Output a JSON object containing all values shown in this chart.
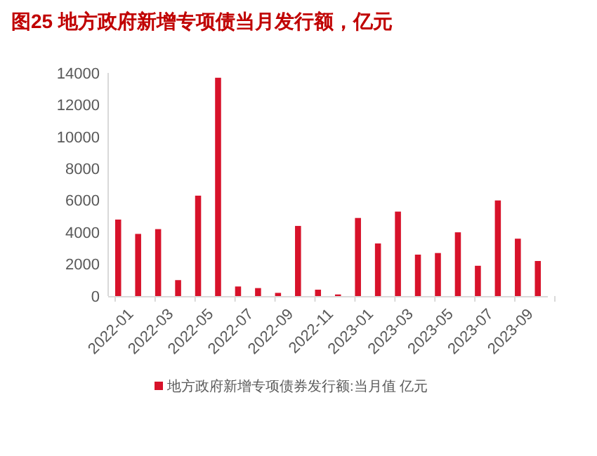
{
  "chart_data": {
    "type": "bar",
    "title": "图25  地方政府新增专项债当月发行额，亿元",
    "categories": [
      "2022-01",
      null,
      "2022-03",
      null,
      "2022-05",
      null,
      "2022-07",
      null,
      "2022-09",
      null,
      "2022-11",
      null,
      "2023-01",
      null,
      "2023-03",
      null,
      "2023-05",
      null,
      "2023-07",
      null,
      "2023-09",
      null
    ],
    "series": [
      {
        "name": "地方政府新增专项债券发行额:当月值 亿元",
        "color": "#d7122a",
        "values": [
          4800,
          3900,
          4200,
          1000,
          6300,
          13700,
          600,
          500,
          200,
          4400,
          400,
          100,
          4900,
          3300,
          5300,
          2600,
          2700,
          4000,
          1900,
          6000,
          3600,
          2200
        ]
      }
    ],
    "ylim": [
      0,
      14000
    ],
    "yticks": [
      0,
      2000,
      4000,
      6000,
      8000,
      10000,
      12000,
      14000
    ],
    "grid": false,
    "legend": "bottom"
  }
}
